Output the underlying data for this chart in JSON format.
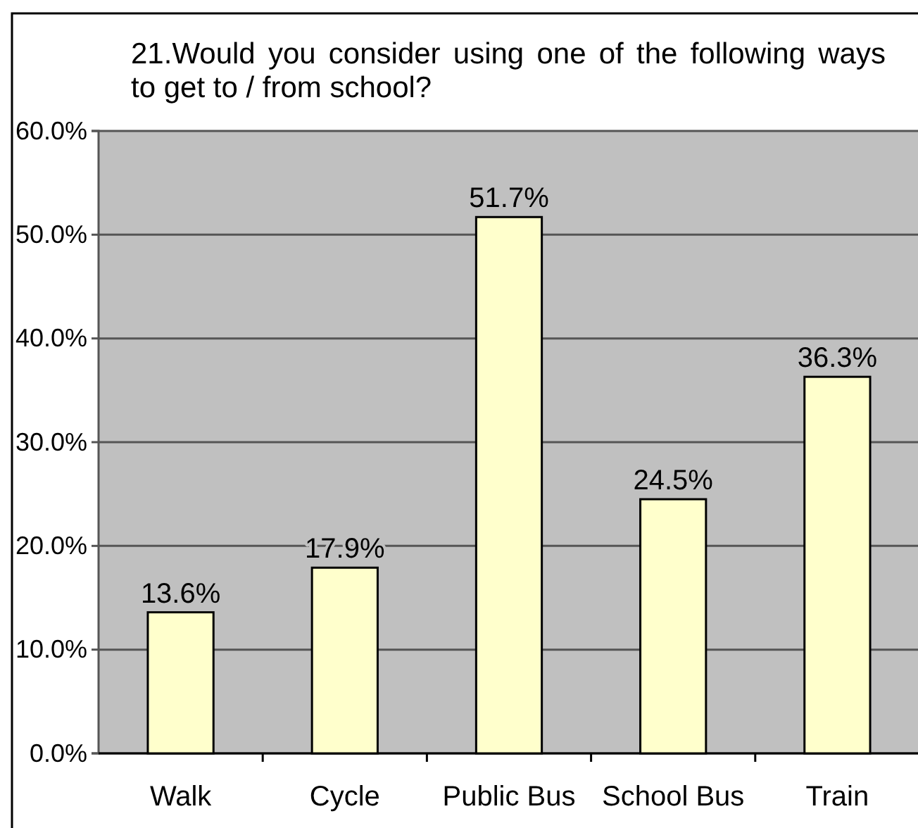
{
  "chart_data": {
    "type": "bar",
    "title": "21.Would you consider using one of the following ways to get to / from school?",
    "categories": [
      "Walk",
      "Cycle",
      "Public Bus",
      "School Bus",
      "Train"
    ],
    "values": [
      13.6,
      17.9,
      51.7,
      24.5,
      36.3
    ],
    "value_labels": [
      "13.6%",
      "17.9%",
      "51.7%",
      "24.5%",
      "36.3%"
    ],
    "color": "#ffffcc",
    "ylim": [
      0,
      60
    ],
    "yticks": [
      {
        "value": 0,
        "label": "0.0%"
      },
      {
        "value": 10,
        "label": "10.0%"
      },
      {
        "value": 20,
        "label": "20.0%"
      },
      {
        "value": 30,
        "label": "30.0%"
      },
      {
        "value": 40,
        "label": "40.0%"
      },
      {
        "value": 50,
        "label": "50.0%"
      },
      {
        "value": 60,
        "label": "60.0%"
      }
    ],
    "grid": "y"
  }
}
